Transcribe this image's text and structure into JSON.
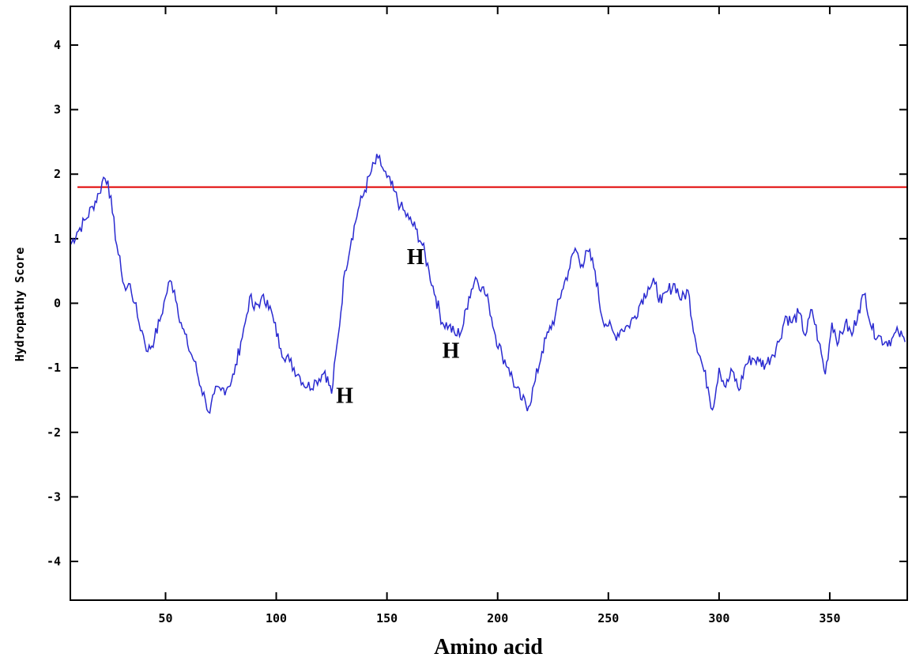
{
  "chart_data": {
    "type": "line",
    "title": "",
    "xlabel": "Amino acid",
    "ylabel": "Hydropathy Score",
    "xlim": [
      7,
      385
    ],
    "ylim": [
      -4.6,
      4.6
    ],
    "xticks": [
      50,
      100,
      150,
      200,
      250,
      300,
      350
    ],
    "yticks": [
      -4,
      -3,
      -2,
      -1,
      0,
      1,
      2,
      3,
      4
    ],
    "grid": false,
    "legend": "none",
    "threshold": {
      "y": 1.8,
      "color": "#e00000"
    },
    "series": [
      {
        "color": "#2a2ad0",
        "x": [
          7,
          10,
          14,
          17,
          20,
          22,
          24,
          26,
          28,
          30,
          32,
          34,
          36,
          38,
          40,
          42,
          45,
          48,
          50,
          52,
          54,
          57,
          60,
          63,
          66,
          68,
          70,
          72,
          75,
          78,
          81,
          84,
          86,
          88,
          90,
          93,
          96,
          99,
          102,
          106,
          110,
          114,
          118,
          122,
          125,
          128,
          131,
          134,
          137,
          140,
          143,
          146,
          148,
          150,
          153,
          156,
          160,
          163,
          166,
          169,
          172,
          175,
          178,
          181,
          184,
          187,
          190,
          193,
          196,
          199,
          202,
          205,
          208,
          211,
          214,
          217,
          220,
          223,
          226,
          229,
          232,
          235,
          238,
          241,
          244,
          247,
          250,
          253,
          256,
          259,
          262,
          265,
          268,
          271,
          274,
          277,
          280,
          283,
          286,
          289,
          292,
          295,
          297,
          300,
          303,
          306,
          309,
          312,
          315,
          318,
          321,
          324,
          327,
          330,
          333,
          336,
          339,
          342,
          345,
          348,
          351,
          354,
          357,
          360,
          363,
          366,
          369,
          372,
          375,
          378,
          381,
          384
        ],
        "values": [
          0.9,
          1.1,
          1.3,
          1.5,
          1.7,
          1.95,
          1.9,
          1.4,
          0.9,
          0.5,
          0.2,
          0.3,
          0.0,
          -0.3,
          -0.5,
          -0.75,
          -0.55,
          -0.2,
          0.1,
          0.35,
          0.2,
          -0.3,
          -0.65,
          -0.9,
          -1.3,
          -1.5,
          -1.7,
          -1.4,
          -1.35,
          -1.3,
          -1.1,
          -0.6,
          -0.3,
          0.1,
          -0.1,
          0.05,
          0.05,
          -0.3,
          -0.7,
          -0.9,
          -1.1,
          -1.3,
          -1.2,
          -1.05,
          -1.4,
          -0.5,
          0.5,
          1.0,
          1.45,
          1.75,
          2.05,
          2.25,
          2.1,
          1.95,
          1.75,
          1.5,
          1.3,
          1.15,
          0.9,
          0.5,
          0.1,
          -0.3,
          -0.35,
          -0.5,
          -0.4,
          0.1,
          0.4,
          0.25,
          0.0,
          -0.5,
          -0.8,
          -1.0,
          -1.3,
          -1.5,
          -1.6,
          -1.2,
          -0.75,
          -0.45,
          -0.2,
          0.2,
          0.5,
          0.85,
          0.6,
          0.8,
          0.5,
          -0.2,
          -0.35,
          -0.5,
          -0.4,
          -0.35,
          -0.2,
          0.05,
          0.25,
          0.3,
          0.0,
          0.2,
          0.3,
          0.05,
          0.2,
          -0.5,
          -0.9,
          -1.3,
          -1.65,
          -1.0,
          -1.3,
          -1.05,
          -1.35,
          -0.95,
          -0.85,
          -0.9,
          -0.95,
          -0.8,
          -0.6,
          -0.2,
          -0.3,
          -0.15,
          -0.5,
          -0.1,
          -0.6,
          -1.1,
          -0.3,
          -0.6,
          -0.3,
          -0.5,
          -0.1,
          0.15,
          -0.4,
          -0.5,
          -0.6,
          -0.55,
          -0.45,
          -0.6
        ]
      }
    ],
    "annotations": [
      {
        "text": "H",
        "x": 127,
        "y": -1.3
      },
      {
        "text": "H",
        "x": 159,
        "y": 0.85
      },
      {
        "text": "H",
        "x": 175,
        "y": -0.6
      }
    ]
  }
}
